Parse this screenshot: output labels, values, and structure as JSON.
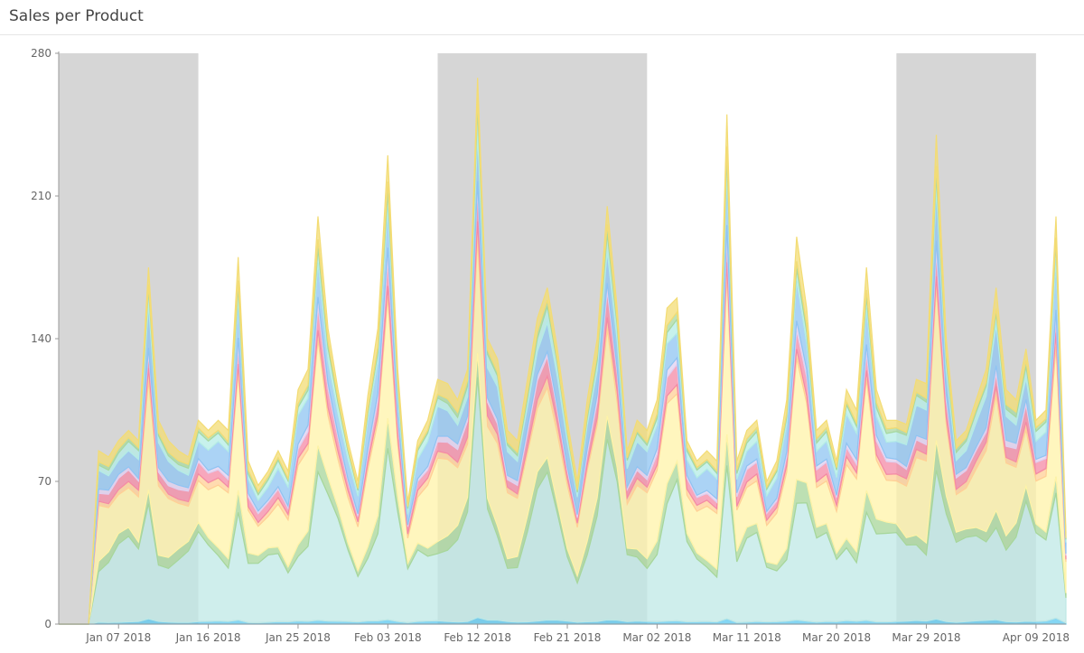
{
  "header": {
    "title": "Sales per Product"
  },
  "chart_data": {
    "type": "area",
    "stacked": true,
    "x_start_date": "2018-01-01",
    "x_end_date": "2018-04-12",
    "ylim": [
      0,
      280
    ],
    "yticks": [
      0,
      70,
      140,
      210,
      280
    ],
    "xticks": [
      {
        "date": "2018-01-07",
        "label": "Jan 07 2018"
      },
      {
        "date": "2018-01-16",
        "label": "Jan 16 2018"
      },
      {
        "date": "2018-01-25",
        "label": "Jan 25 2018"
      },
      {
        "date": "2018-02-03",
        "label": "Feb 03 2018"
      },
      {
        "date": "2018-02-12",
        "label": "Feb 12 2018"
      },
      {
        "date": "2018-02-21",
        "label": "Feb 21 2018"
      },
      {
        "date": "2018-03-02",
        "label": "Mar 02 2018"
      },
      {
        "date": "2018-03-11",
        "label": "Mar 11 2018"
      },
      {
        "date": "2018-03-20",
        "label": "Mar 20 2018"
      },
      {
        "date": "2018-03-29",
        "label": "Mar 29 2018"
      },
      {
        "date": "2018-04-09",
        "label": "Apr 09 2018"
      }
    ],
    "shaded_ranges": [
      {
        "start": "2018-01-01",
        "end": "2018-01-15"
      },
      {
        "start": "2018-02-08",
        "end": "2018-03-01"
      },
      {
        "start": "2018-03-26",
        "end": "2018-04-09"
      }
    ],
    "colors": {
      "shade": "#bdbdbd",
      "series": [
        "#5bc8f0",
        "#bfe8e6",
        "#a7d69a",
        "#fff3a8",
        "#ffcf96",
        "#f48aa6",
        "#e0d0f0",
        "#8fc4f2",
        "#b4ece6",
        "#a8d8a0",
        "#f3dc74"
      ]
    },
    "totals": [
      0,
      0,
      0,
      0,
      85,
      82,
      90,
      95,
      90,
      175,
      100,
      90,
      85,
      82,
      100,
      95,
      100,
      95,
      180,
      80,
      68,
      75,
      85,
      75,
      115,
      125,
      200,
      145,
      115,
      90,
      70,
      112,
      145,
      230,
      125,
      60,
      90,
      100,
      120,
      118,
      110,
      125,
      268,
      140,
      130,
      95,
      90,
      120,
      150,
      165,
      135,
      100,
      70,
      110,
      140,
      205,
      155,
      85,
      100,
      95,
      110,
      155,
      160,
      90,
      80,
      85,
      80,
      250,
      80,
      95,
      100,
      70,
      80,
      110,
      190,
      155,
      95,
      100,
      80,
      115,
      105,
      175,
      115,
      100,
      100,
      98,
      120,
      118,
      240,
      140,
      90,
      95,
      110,
      125,
      165,
      115,
      110,
      135,
      100,
      105,
      200,
      45
    ]
  }
}
